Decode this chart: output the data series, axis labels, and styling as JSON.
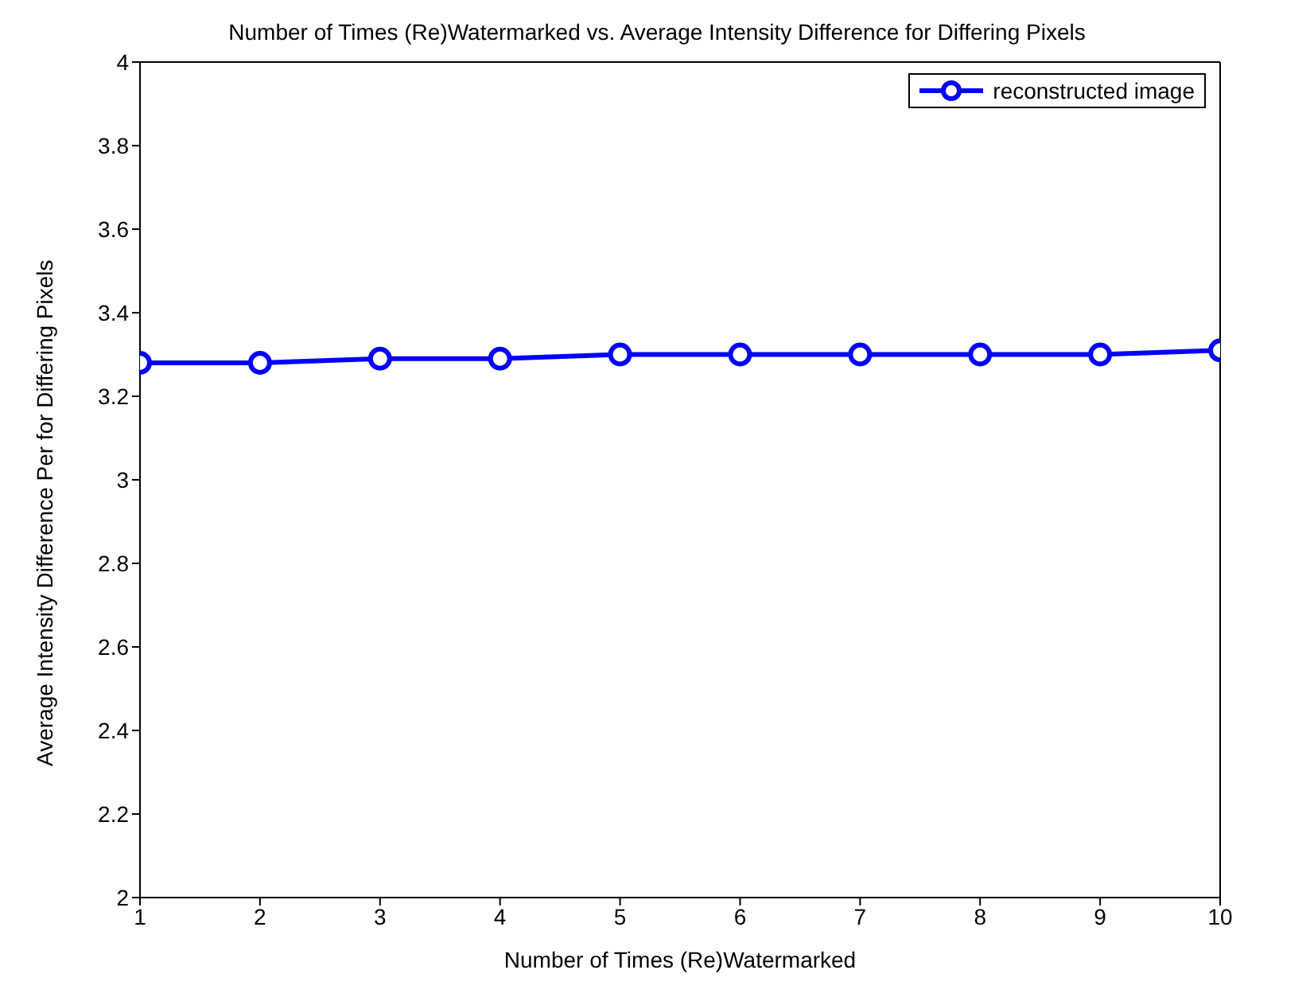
{
  "chart_data": {
    "type": "line",
    "title": "Number of Times (Re)Watermarked vs. Average Intensity Difference for Differing Pixels",
    "xlabel": "Number of Times (Re)Watermarked",
    "ylabel": "Average Intensity Difference Per for Differing Pixels",
    "x": [
      1,
      2,
      3,
      4,
      5,
      6,
      7,
      8,
      9,
      10
    ],
    "series": [
      {
        "name": "reconstructed image",
        "color": "#0000ff",
        "values": [
          3.28,
          3.28,
          3.29,
          3.29,
          3.3,
          3.3,
          3.3,
          3.3,
          3.3,
          3.31
        ]
      }
    ],
    "xlim": [
      1,
      10
    ],
    "xticks": [
      1,
      2,
      3,
      4,
      5,
      6,
      7,
      8,
      9,
      10
    ],
    "ylim": [
      2,
      4
    ],
    "yticks": [
      2,
      2.2,
      2.4,
      2.6,
      2.8,
      3,
      3.2,
      3.4,
      3.6,
      3.8,
      4
    ],
    "grid": false,
    "legend": "top right",
    "marker": "circle",
    "line_style": "solid"
  }
}
